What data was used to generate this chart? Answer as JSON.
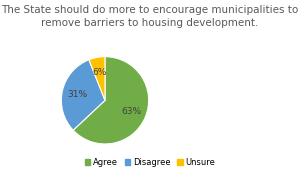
{
  "title": "The State should do more to encourage municipalities to\nremove barriers to housing development.",
  "slices": [
    63,
    31,
    6
  ],
  "labels": [
    "Agree",
    "Disagree",
    "Unsure"
  ],
  "colors": [
    "#70ad47",
    "#5b9bd5",
    "#ffc000"
  ],
  "startangle": 90,
  "legend_labels": [
    "Agree",
    "Disagree",
    "Unsure"
  ],
  "background_color": "#ffffff",
  "title_fontsize": 7.5,
  "title_color": "#595959"
}
